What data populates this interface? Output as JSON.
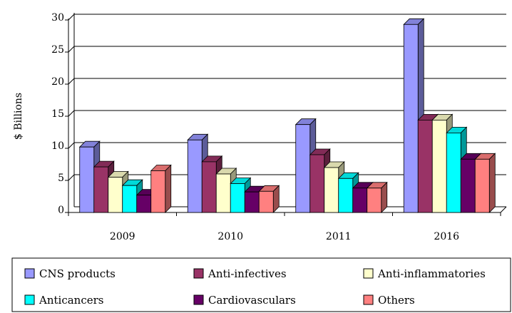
{
  "chart_data": {
    "type": "bar",
    "categories": [
      "2009",
      "2010",
      "2011",
      "2016"
    ],
    "series": [
      {
        "name": "CNS products",
        "color": "#9999ff",
        "values": [
          10.2,
          11.3,
          13.7,
          29.3
        ]
      },
      {
        "name": "Anti-infectives",
        "color": "#993366",
        "values": [
          7.1,
          7.9,
          9.0,
          14.4
        ]
      },
      {
        "name": "Anti-inflammatories",
        "color": "#ffffcc",
        "values": [
          5.5,
          6.0,
          7.0,
          14.4
        ]
      },
      {
        "name": "Anticancers",
        "color": "#00ffff",
        "values": [
          4.2,
          4.5,
          5.3,
          12.4
        ]
      },
      {
        "name": "Cardiovasculars",
        "color": "#660066",
        "values": [
          2.7,
          3.2,
          3.8,
          8.3
        ]
      },
      {
        "name": "Others",
        "color": "#ff8080",
        "values": [
          6.5,
          3.3,
          3.8,
          8.3
        ]
      }
    ],
    "ylabel": "$ Billions",
    "ylim": [
      0,
      30
    ],
    "yticks": [
      "0",
      "5",
      "10",
      "15",
      "20",
      "25",
      "30"
    ],
    "grid": true,
    "legend_position": "bottom"
  }
}
